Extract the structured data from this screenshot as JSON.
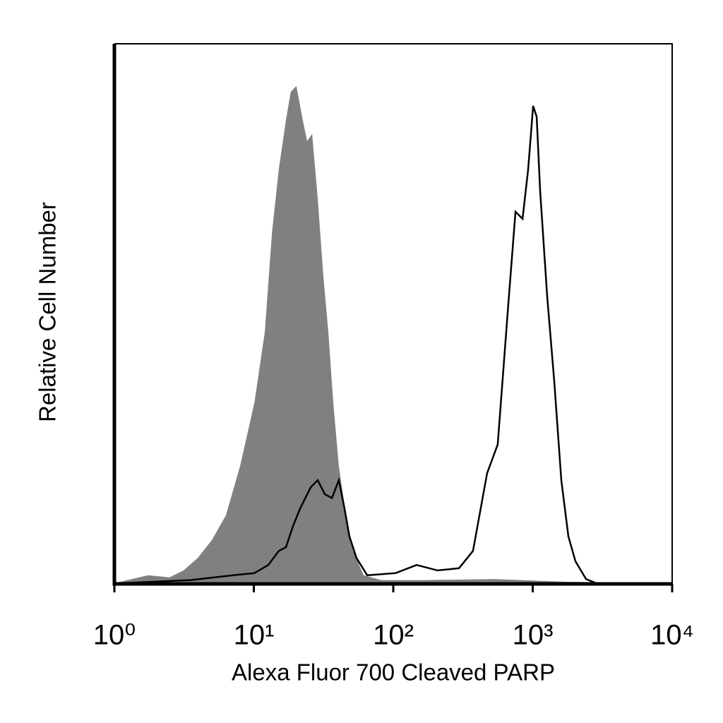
{
  "chart_data": {
    "type": "histogram-overlay",
    "x_label": "Alexa Fluor 700 Cleaved PARP",
    "y_label": "Relative Cell Number",
    "xscale": "log",
    "xlim": [
      1,
      10000
    ],
    "xticks": [
      {
        "value": 1,
        "label": "10⁰"
      },
      {
        "value": 10,
        "label": "10¹"
      },
      {
        "value": 100,
        "label": "10²"
      },
      {
        "value": 1000,
        "label": "10³"
      },
      {
        "value": 10000,
        "label": "10⁴"
      }
    ],
    "ylim": [
      0,
      100
    ],
    "series": [
      {
        "color": "#808080",
        "filled": true,
        "x": [
          1.04,
          1.75,
          2.48,
          3.13,
          3.96,
          5.0,
          6.31,
          7.97,
          10.1,
          12.0,
          13.5,
          15.1,
          17.0,
          18.4,
          20.2,
          22.2,
          24.1,
          26.2,
          28.7,
          31.5,
          34.2,
          37.1,
          40.7,
          45.8,
          51.5,
          61.3,
          82.0,
          165,
          530,
          1700,
          9770
        ],
        "values": [
          0.26,
          1.6,
          1.2,
          2.5,
          4.8,
          8.1,
          12.7,
          21.8,
          33.6,
          46.7,
          65.0,
          76.7,
          85.9,
          91.1,
          92.2,
          86.5,
          82.0,
          83.3,
          71.5,
          57.1,
          46.7,
          33.6,
          21.8,
          12.7,
          6.1,
          1.6,
          0.7,
          0.7,
          0.9,
          0.4,
          0.1
        ]
      },
      {
        "color": "#000000",
        "filled": false,
        "x": [
          1.04,
          3.52,
          7.09,
          10.1,
          12.7,
          15.1,
          17.0,
          19.1,
          21.5,
          25.6,
          28.7,
          32.3,
          36.3,
          40.7,
          44.7,
          48.5,
          54.5,
          65.0,
          104,
          147,
          208,
          296,
          373,
          471,
          561,
          669,
          752,
          845,
          927,
          1007,
          1067,
          1130,
          1270,
          1427,
          1603,
          1802,
          2025,
          2411,
          2873,
          9770
        ],
        "values": [
          0.1,
          0.7,
          1.6,
          2.0,
          3.5,
          6.1,
          6.8,
          10.7,
          14.0,
          17.9,
          19.2,
          16.6,
          15.9,
          19.2,
          14.0,
          8.8,
          4.8,
          1.6,
          2.0,
          3.5,
          2.5,
          2.9,
          6.1,
          20.5,
          25.8,
          51.9,
          68.9,
          67.6,
          76.7,
          88.5,
          86.5,
          72.8,
          53.2,
          37.5,
          19.2,
          8.8,
          4.2,
          0.9,
          0.1,
          0.1
        ]
      }
    ]
  }
}
